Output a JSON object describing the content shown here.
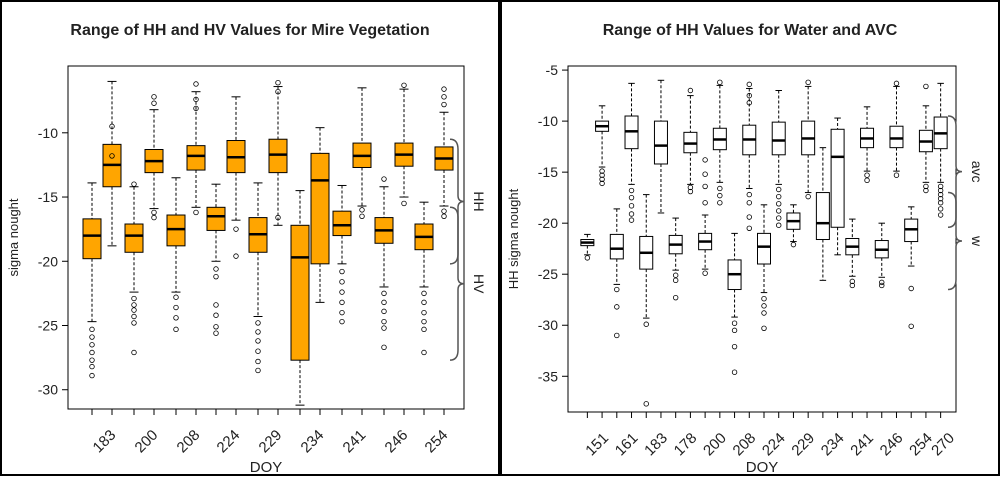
{
  "chart_data": [
    {
      "type": "boxplot",
      "title": "Range of HH and HV Values for Mire Vegetation",
      "xlabel": "DOY",
      "ylabel": "sigma nought",
      "ylim": [
        -31.5,
        -4.8
      ],
      "yticks": [
        -10,
        -15,
        -20,
        -25,
        -30
      ],
      "xtick_labels": [
        "183",
        "200",
        "208",
        "224",
        "229",
        "234",
        "241",
        "246",
        "254"
      ],
      "box_color": "#FFA500",
      "groups": [
        {
          "name": "HH",
          "label": "HH",
          "series_id": "hh"
        },
        {
          "name": "HV",
          "label": "HV",
          "series_id": "hv"
        }
      ],
      "boxes": [
        {
          "doy": "183",
          "series": "HV",
          "q1": -19.8,
          "median": -18.0,
          "q3": -16.7,
          "whisker_low": -24.7,
          "whisker_high": -13.9,
          "outliers": [
            -25.3,
            -25.9,
            -26.5,
            -27.1,
            -27.7,
            -28.2,
            -28.9
          ]
        },
        {
          "doy": "183",
          "series": "HH",
          "q1": -14.2,
          "median": -12.5,
          "q3": -10.9,
          "whisker_low": -18.8,
          "whisker_high": -6.0,
          "outliers": [
            -9.5,
            -11.8
          ]
        },
        {
          "doy": "200",
          "series": "HV",
          "q1": -19.3,
          "median": -18.0,
          "q3": -17.1,
          "whisker_low": -22.4,
          "whisker_high": -14.2,
          "outliers": [
            -22.9,
            -23.4,
            -23.8,
            -24.3,
            -24.8,
            -27.1,
            -14.0
          ]
        },
        {
          "doy": "200",
          "series": "HH",
          "q1": -13.1,
          "median": -12.2,
          "q3": -11.3,
          "whisker_low": -15.9,
          "whisker_high": -8.2,
          "outliers": [
            -7.2,
            -7.7,
            -16.2,
            -16.6
          ]
        },
        {
          "doy": "208",
          "series": "HV",
          "q1": -18.8,
          "median": -17.5,
          "q3": -16.4,
          "whisker_low": -22.4,
          "whisker_high": -13.5,
          "outliers": [
            -22.8,
            -23.6,
            -24.4,
            -25.3
          ]
        },
        {
          "doy": "208",
          "series": "HH",
          "q1": -12.9,
          "median": -11.8,
          "q3": -11.0,
          "whisker_low": -15.8,
          "whisker_high": -6.8,
          "outliers": [
            -6.2,
            -7.4,
            -8.1,
            -16.2
          ]
        },
        {
          "doy": "224",
          "series": "HV",
          "q1": -17.6,
          "median": -16.5,
          "q3": -15.8,
          "whisker_low": -20.0,
          "whisker_high": -14.0,
          "outliers": [
            -20.6,
            -21.2,
            -23.4,
            -24.2,
            -25.1,
            -25.6
          ]
        },
        {
          "doy": "224",
          "series": "HH",
          "q1": -13.1,
          "median": -11.9,
          "q3": -10.6,
          "whisker_low": -16.8,
          "whisker_high": -7.2,
          "outliers": [
            -19.6,
            -17.5
          ]
        },
        {
          "doy": "229",
          "series": "HV",
          "q1": -19.3,
          "median": -17.9,
          "q3": -16.6,
          "whisker_low": -24.3,
          "whisker_high": -13.9,
          "outliers": [
            -24.8,
            -25.5,
            -26.2,
            -27.0,
            -27.8,
            -28.5
          ]
        },
        {
          "doy": "229",
          "series": "HH",
          "q1": -13.1,
          "median": -11.7,
          "q3": -10.5,
          "whisker_low": -17.2,
          "whisker_high": -6.4,
          "outliers": [
            -6.1,
            -6.8,
            -16.6
          ]
        },
        {
          "doy": "234",
          "series": "HV",
          "q1": -27.7,
          "median": -19.7,
          "q3": -17.2,
          "whisker_low": -31.2,
          "whisker_high": -14.5,
          "outliers": []
        },
        {
          "doy": "234",
          "series": "HH",
          "q1": -20.2,
          "median": -13.7,
          "q3": -11.6,
          "whisker_low": -23.2,
          "whisker_high": -9.6,
          "outliers": []
        },
        {
          "doy": "241",
          "series": "HV",
          "q1": -18.0,
          "median": -17.2,
          "q3": -16.1,
          "whisker_low": -20.2,
          "whisker_high": -14.1,
          "outliers": [
            -20.8,
            -21.6,
            -22.4,
            -23.2,
            -24.0,
            -24.7
          ]
        },
        {
          "doy": "241",
          "series": "HH",
          "q1": -12.7,
          "median": -11.8,
          "q3": -10.8,
          "whisker_low": -15.7,
          "whisker_high": -6.5,
          "outliers": [
            -16.0,
            -16.5
          ]
        },
        {
          "doy": "246",
          "series": "HV",
          "q1": -18.6,
          "median": -17.6,
          "q3": -16.6,
          "whisker_low": -22.0,
          "whisker_high": -14.2,
          "outliers": [
            -22.5,
            -23.2,
            -23.9,
            -24.7,
            -25.2,
            -26.7,
            -13.6
          ]
        },
        {
          "doy": "246",
          "series": "HH",
          "q1": -12.6,
          "median": -11.7,
          "q3": -10.8,
          "whisker_low": -15.0,
          "whisker_high": -6.6,
          "outliers": [
            -15.5,
            -6.3
          ]
        },
        {
          "doy": "254",
          "series": "HV",
          "q1": -19.1,
          "median": -18.1,
          "q3": -17.1,
          "whisker_low": -22.0,
          "whisker_high": -15.4,
          "outliers": [
            -22.5,
            -23.2,
            -24.0,
            -24.7,
            -25.3,
            -27.1
          ]
        },
        {
          "doy": "254",
          "series": "HH",
          "q1": -12.9,
          "median": -12.0,
          "q3": -11.1,
          "whisker_low": -15.7,
          "whisker_high": -8.4,
          "outliers": [
            -6.6,
            -7.2,
            -7.8,
            -16.1,
            -16.5
          ]
        }
      ]
    },
    {
      "type": "boxplot",
      "title": "Range of HH Values for Water and AVC",
      "xlabel": "DOY",
      "ylabel": "HH sigma nought",
      "ylim": [
        -38.5,
        -4.6
      ],
      "yticks": [
        -5,
        -10,
        -15,
        -20,
        -25,
        -30,
        -35
      ],
      "xtick_labels": [
        "151",
        "161",
        "183",
        "178",
        "200",
        "208",
        "224",
        "229",
        "234",
        "241",
        "246",
        "254",
        "270"
      ],
      "box_color": "#FFFFFF",
      "groups": [
        {
          "name": "avc",
          "label": "avc",
          "series_id": "avc"
        },
        {
          "name": "w",
          "label": "w",
          "series_id": "w"
        }
      ],
      "boxes": [
        {
          "doy": "151",
          "series": "w",
          "q1": -22.2,
          "median": -21.9,
          "q3": -21.6,
          "whisker_low": -23.1,
          "whisker_high": -21.1,
          "outliers": [
            -23.4
          ]
        },
        {
          "doy": "151",
          "series": "avc",
          "q1": -11.0,
          "median": -10.5,
          "q3": -10.0,
          "whisker_low": -14.5,
          "whisker_high": -8.5,
          "outliers": [
            -14.9,
            -15.3,
            -15.7,
            -16.1
          ]
        },
        {
          "doy": "161",
          "series": "w",
          "q1": -23.5,
          "median": -22.5,
          "q3": -21.1,
          "whisker_low": -26.0,
          "whisker_high": -18.6,
          "outliers": [
            -26.5,
            -28.2,
            -31.0
          ]
        },
        {
          "doy": "161",
          "series": "avc",
          "q1": -12.7,
          "median": -11.0,
          "q3": -9.5,
          "whisker_low": -16.2,
          "whisker_high": -6.3,
          "outliers": [
            -16.8,
            -17.5,
            -18.3,
            -19.1,
            -19.7
          ]
        },
        {
          "doy": "183",
          "series": "w",
          "q1": -24.5,
          "median": -22.9,
          "q3": -21.3,
          "whisker_low": -29.3,
          "whisker_high": -17.2,
          "outliers": [
            -29.9,
            -37.7
          ]
        },
        {
          "doy": "183",
          "series": "avc",
          "q1": -14.2,
          "median": -12.4,
          "q3": -10.0,
          "whisker_low": -19.0,
          "whisker_high": -6.0,
          "outliers": []
        },
        {
          "doy": "178",
          "series": "w",
          "q1": -23.0,
          "median": -22.1,
          "q3": -21.2,
          "whisker_low": -24.6,
          "whisker_high": -19.5,
          "outliers": [
            -25.1,
            -25.6,
            -27.3
          ]
        },
        {
          "doy": "178",
          "series": "avc",
          "q1": -13.1,
          "median": -12.2,
          "q3": -11.1,
          "whisker_low": -16.2,
          "whisker_high": -7.5,
          "outliers": [
            -16.5,
            -16.9,
            -7.0
          ]
        },
        {
          "doy": "200",
          "series": "w",
          "q1": -22.6,
          "median": -21.8,
          "q3": -21.0,
          "whisker_low": -24.5,
          "whisker_high": -19.2,
          "outliers": [
            -24.9,
            -18.0,
            -16.4,
            -15.2,
            -13.8
          ]
        },
        {
          "doy": "200",
          "series": "avc",
          "q1": -12.8,
          "median": -11.8,
          "q3": -10.7,
          "whisker_low": -16.0,
          "whisker_high": -6.5,
          "outliers": [
            -16.6,
            -17.3,
            -18.0,
            -6.2
          ]
        },
        {
          "doy": "208",
          "series": "w",
          "q1": -26.5,
          "median": -25.0,
          "q3": -23.6,
          "whisker_low": -29.2,
          "whisker_high": -21.0,
          "outliers": [
            -29.8,
            -30.5,
            -32.1,
            -34.6
          ]
        },
        {
          "doy": "208",
          "series": "avc",
          "q1": -13.3,
          "median": -11.8,
          "q3": -10.4,
          "whisker_low": -16.6,
          "whisker_high": -6.8,
          "outliers": [
            -6.4,
            -7.5,
            -8.2,
            -17.2,
            -18.0,
            -19.4,
            -20.5
          ]
        },
        {
          "doy": "224",
          "series": "w",
          "q1": -24.0,
          "median": -22.3,
          "q3": -21.0,
          "whisker_low": -26.8,
          "whisker_high": -18.2,
          "outliers": [
            -27.4,
            -28.1,
            -28.8,
            -30.3
          ]
        },
        {
          "doy": "224",
          "series": "avc",
          "q1": -13.3,
          "median": -11.9,
          "q3": -10.1,
          "whisker_low": -16.2,
          "whisker_high": -7.0,
          "outliers": [
            -16.7,
            -17.4,
            -18.1,
            -18.8,
            -19.5,
            -20.2
          ]
        },
        {
          "doy": "229",
          "series": "w",
          "q1": -20.6,
          "median": -19.8,
          "q3": -19.0,
          "whisker_low": -21.8,
          "whisker_high": -18.2,
          "outliers": [
            -22.1
          ]
        },
        {
          "doy": "229",
          "series": "avc",
          "q1": -13.3,
          "median": -11.7,
          "q3": -10.0,
          "whisker_low": -17.0,
          "whisker_high": -6.6,
          "outliers": [
            -6.2,
            -17.4
          ]
        },
        {
          "doy": "234",
          "series": "w",
          "q1": -21.6,
          "median": -20.0,
          "q3": -17.0,
          "whisker_low": -25.6,
          "whisker_high": -12.6,
          "outliers": []
        },
        {
          "doy": "234",
          "series": "avc",
          "q1": -20.4,
          "median": -13.5,
          "q3": -10.8,
          "whisker_low": -23.1,
          "whisker_high": -9.7,
          "outliers": []
        },
        {
          "doy": "241",
          "series": "w",
          "q1": -23.1,
          "median": -22.3,
          "q3": -21.5,
          "whisker_low": -25.2,
          "whisker_high": -19.6,
          "outliers": [
            -25.7,
            -26.1
          ]
        },
        {
          "doy": "241",
          "series": "avc",
          "q1": -12.6,
          "median": -11.7,
          "q3": -10.7,
          "whisker_low": -14.9,
          "whisker_high": -8.6,
          "outliers": [
            -15.3,
            -15.8
          ]
        },
        {
          "doy": "246",
          "series": "w",
          "q1": -23.4,
          "median": -22.6,
          "q3": -21.7,
          "whisker_low": -25.3,
          "whisker_high": -20.0,
          "outliers": [
            -25.8,
            -26.1
          ]
        },
        {
          "doy": "246",
          "series": "avc",
          "q1": -12.6,
          "median": -11.7,
          "q3": -10.5,
          "whisker_low": -14.9,
          "whisker_high": -6.6,
          "outliers": [
            -15.3,
            -6.3
          ]
        },
        {
          "doy": "254",
          "series": "w",
          "q1": -21.8,
          "median": -20.6,
          "q3": -19.6,
          "whisker_low": -24.2,
          "whisker_high": -18.4,
          "outliers": [
            -26.4,
            -30.1
          ]
        },
        {
          "doy": "254",
          "series": "avc",
          "q1": -13.0,
          "median": -12.0,
          "q3": -10.9,
          "whisker_low": -16.0,
          "whisker_high": -8.5,
          "outliers": [
            -16.4,
            -16.8,
            -6.6
          ]
        },
        {
          "doy": "270",
          "series": "avc",
          "q1": -12.7,
          "median": -11.2,
          "q3": -9.6,
          "whisker_low": -16.0,
          "whisker_high": -6.3,
          "outliers": [
            -16.4,
            -16.8,
            -17.2,
            -17.6,
            -18.0,
            -18.6,
            -19.2
          ]
        }
      ]
    }
  ]
}
